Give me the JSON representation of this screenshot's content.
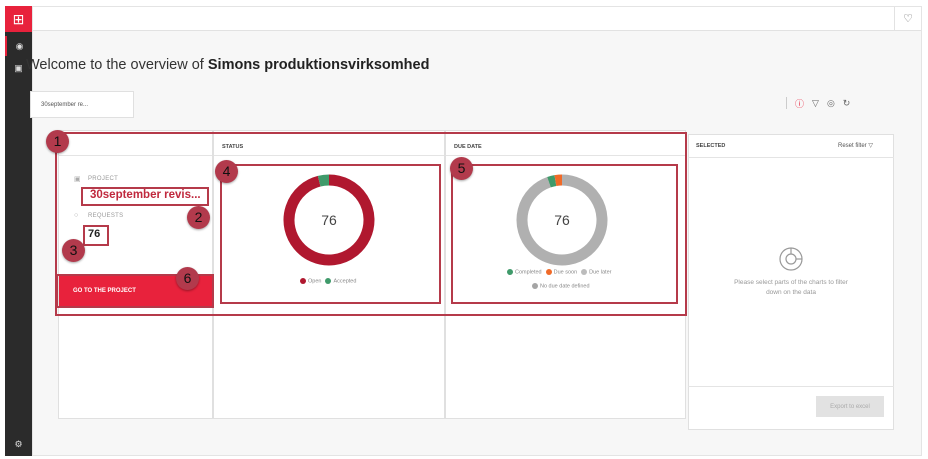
{
  "welcome": {
    "prefix": "Welcome to the overview of ",
    "org": "Simons produktionsvirksomhed"
  },
  "chip": {
    "label": "30september re..."
  },
  "project_card": {
    "project_label": "PROJECT",
    "project_name": "30september revis...",
    "requests_label": "REQUESTS",
    "requests_count": "76",
    "button": "GO TO THE PROJECT"
  },
  "status": {
    "header": "STATUS",
    "center": "76",
    "legend": [
      {
        "label": "Open",
        "color": "#b0182f"
      },
      {
        "label": "Accepted",
        "color": "#3f9a6a"
      }
    ]
  },
  "due_date": {
    "header": "DUE DATE",
    "center": "76",
    "legend": [
      {
        "label": "Completed",
        "color": "#3f9a6a"
      },
      {
        "label": "Due soon",
        "color": "#f06a28"
      },
      {
        "label": "Due later",
        "color": "#bcbcbc"
      },
      {
        "label": "No due date defined",
        "color": "#a5a5a5"
      }
    ]
  },
  "chart_data": [
    {
      "type": "pie",
      "categories": [
        "Open",
        "Accepted"
      ],
      "values": [
        73,
        3
      ],
      "colors": [
        "#b0182f",
        "#3f9a6a"
      ],
      "title": "STATUS"
    },
    {
      "type": "pie",
      "categories": [
        "No due date defined",
        "Completed",
        "Due soon"
      ],
      "values": [
        72,
        2,
        2
      ],
      "colors": [
        "#b0b0b0",
        "#3f9a6a",
        "#f06a28"
      ],
      "title": "DUE DATE"
    }
  ],
  "selected": {
    "header": "SELECTED",
    "reset": "Reset filter",
    "message": "Please select parts of the charts to filter down on the data",
    "export": "Export to excel"
  },
  "annotations": [
    "1",
    "2",
    "3",
    "4",
    "5",
    "6"
  ]
}
